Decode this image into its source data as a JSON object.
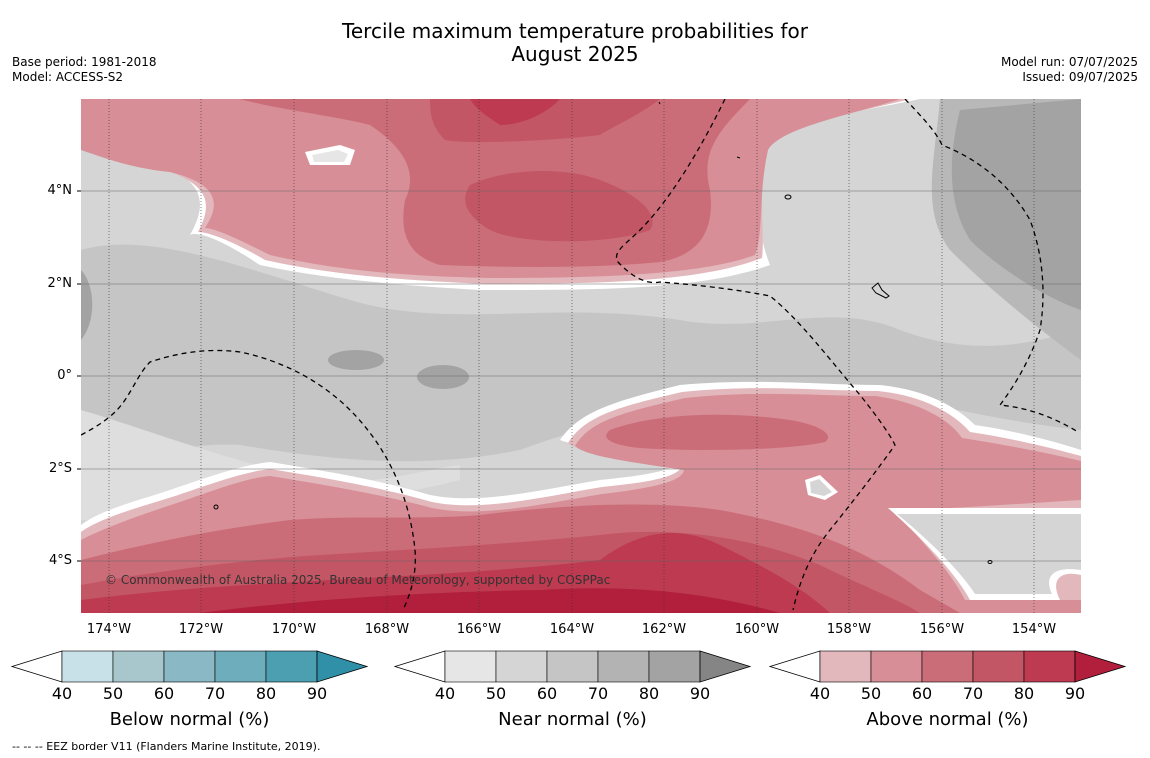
{
  "title_line1": "Tercile maximum temperature probabilities for",
  "title_line2": "August 2025",
  "meta_left": {
    "base_period": "Base period: 1981-2018",
    "model": "Model: ACCESS-S2"
  },
  "meta_right": {
    "model_run": "Model run: 07/07/2025",
    "issued": "Issued: 09/07/2025"
  },
  "lat_labels": [
    "4°N",
    "2°N",
    "0°",
    "2°S",
    "4°S"
  ],
  "lon_labels": [
    "174°W",
    "172°W",
    "170°W",
    "168°W",
    "166°W",
    "164°W",
    "162°W",
    "160°W",
    "158°W",
    "156°W",
    "154°W"
  ],
  "copyright": "© Commonwealth of Australia 2025, Bureau of Meteorology, supported by COSPPac",
  "colorbars": [
    {
      "title": "Below normal (%)",
      "ticks": [
        "40",
        "50",
        "60",
        "70",
        "80",
        "90"
      ],
      "colors": [
        "#ffffff",
        "#c8e1e8",
        "#a7c7cd",
        "#8ab8c4",
        "#6eadbb",
        "#4b9fb1",
        "#2f90a8"
      ]
    },
    {
      "title": "Near normal (%)",
      "ticks": [
        "40",
        "50",
        "60",
        "70",
        "80",
        "90"
      ],
      "colors": [
        "#ffffff",
        "#e6e6e6",
        "#d5d5d5",
        "#c5c5c5",
        "#b3b3b3",
        "#a3a3a3",
        "#858585"
      ]
    },
    {
      "title": "Above normal (%)",
      "ticks": [
        "40",
        "50",
        "60",
        "70",
        "80",
        "90"
      ],
      "colors": [
        "#ffffff",
        "#e2b8bc",
        "#d78e96",
        "#cb6d78",
        "#c25665",
        "#bd3a50",
        "#b21f3c"
      ]
    }
  ],
  "footnote": "-- -- -- EEZ border V11 (Flanders Marine Institute, 2019)."
}
